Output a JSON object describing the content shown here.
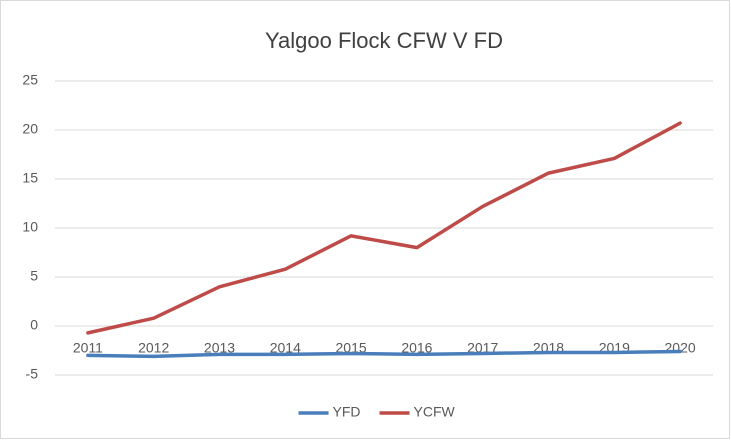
{
  "chart_data": {
    "type": "line",
    "title": "Yalgoo Flock CFW V FD",
    "categories": [
      "2011",
      "2012",
      "2013",
      "2014",
      "2015",
      "2016",
      "2017",
      "2018",
      "2019",
      "2020"
    ],
    "series": [
      {
        "name": "YFD",
        "color": "#4a7ebb",
        "values": [
          -3.0,
          -3.1,
          -2.9,
          -2.9,
          -2.8,
          -2.9,
          -2.8,
          -2.7,
          -2.7,
          -2.6
        ]
      },
      {
        "name": "YCFW",
        "color": "#be4b48",
        "values": [
          -0.7,
          0.8,
          4.0,
          5.8,
          9.2,
          8.0,
          12.2,
          15.6,
          17.1,
          20.7
        ]
      }
    ],
    "ylim": [
      -5,
      25
    ],
    "yticks": [
      -5,
      0,
      5,
      10,
      15,
      20,
      25
    ],
    "grid": true,
    "legend": "bottom"
  }
}
